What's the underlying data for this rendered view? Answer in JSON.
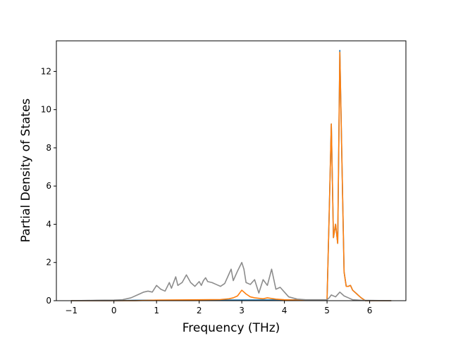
{
  "chart_data": {
    "type": "line",
    "title": "",
    "xlabel": "Frequency (THz)",
    "ylabel": "Partial Density of States",
    "xlim": [
      -1.35,
      6.85
    ],
    "ylim": [
      0,
      13.6
    ],
    "xticks": [
      -1,
      0,
      1,
      2,
      3,
      4,
      5,
      6
    ],
    "xtick_labels": [
      "−1",
      "0",
      "1",
      "2",
      "3",
      "4",
      "5",
      "6"
    ],
    "yticks": [
      0,
      2,
      4,
      6,
      8,
      10,
      12
    ],
    "ytick_labels": [
      "0",
      "2",
      "4",
      "6",
      "8",
      "10",
      "12"
    ],
    "grid": false,
    "legend": "none",
    "series": [
      {
        "color": "#1f77b4",
        "x": [
          -1.0,
          0.0,
          0.5,
          5.0,
          5.05,
          5.1,
          5.15,
          5.2,
          5.25,
          5.3,
          5.35,
          5.4,
          5.45,
          5.5,
          5.55,
          5.6,
          5.7,
          5.8,
          5.9,
          6.5
        ],
        "y": [
          0,
          0,
          0.02,
          0.05,
          4.5,
          9.25,
          3.3,
          4.0,
          3.0,
          13.1,
          7.2,
          1.5,
          0.75,
          0.75,
          0.8,
          0.55,
          0.35,
          0.15,
          0,
          0
        ]
      },
      {
        "color": "#ff7f0e",
        "x": [
          -1.0,
          0.0,
          0.5,
          1.0,
          1.5,
          2.0,
          2.5,
          2.7,
          2.8,
          2.9,
          3.0,
          3.1,
          3.2,
          3.3,
          3.5,
          3.6,
          3.8,
          4.0,
          4.5,
          5.0,
          5.05,
          5.1,
          5.15,
          5.2,
          5.25,
          5.3,
          5.35,
          5.4,
          5.45,
          5.5,
          5.55,
          5.6,
          5.7,
          5.8,
          5.9,
          6.5
        ],
        "y": [
          0,
          0,
          0,
          0.03,
          0.04,
          0.05,
          0.06,
          0.1,
          0.15,
          0.25,
          0.55,
          0.35,
          0.2,
          0.15,
          0.1,
          0.15,
          0.08,
          0.05,
          0.02,
          0.05,
          4.5,
          9.25,
          3.3,
          4.0,
          3.0,
          13.0,
          7.2,
          1.5,
          0.75,
          0.75,
          0.8,
          0.55,
          0.35,
          0.15,
          0,
          0
        ]
      },
      {
        "color": "#8c8c8c",
        "x": [
          -1.0,
          -0.4,
          0.0,
          0.2,
          0.4,
          0.6,
          0.7,
          0.8,
          0.9,
          1.0,
          1.1,
          1.2,
          1.3,
          1.35,
          1.45,
          1.5,
          1.6,
          1.7,
          1.8,
          1.9,
          2.0,
          2.05,
          2.1,
          2.15,
          2.2,
          2.3,
          2.4,
          2.5,
          2.6,
          2.7,
          2.75,
          2.8,
          2.9,
          3.0,
          3.05,
          3.1,
          3.2,
          3.3,
          3.4,
          3.5,
          3.6,
          3.7,
          3.8,
          3.9,
          4.0,
          4.1,
          4.3,
          4.5,
          5.0,
          5.05,
          5.1,
          5.2,
          5.3,
          5.35,
          5.4,
          5.5,
          5.6,
          5.8,
          6.5
        ],
        "y": [
          0,
          0.02,
          0.03,
          0.05,
          0.15,
          0.35,
          0.45,
          0.5,
          0.45,
          0.8,
          0.6,
          0.5,
          0.95,
          0.65,
          1.25,
          0.8,
          0.95,
          1.35,
          0.95,
          0.75,
          1.0,
          0.8,
          1.05,
          1.2,
          1.0,
          0.95,
          0.85,
          0.75,
          0.9,
          1.4,
          1.65,
          1.05,
          1.55,
          2.0,
          1.65,
          0.95,
          0.85,
          1.1,
          0.4,
          1.1,
          0.8,
          1.65,
          0.6,
          0.7,
          0.45,
          0.2,
          0.08,
          0.05,
          0.05,
          0.15,
          0.3,
          0.2,
          0.45,
          0.35,
          0.25,
          0.15,
          0.05,
          0.02,
          0
        ]
      }
    ]
  }
}
